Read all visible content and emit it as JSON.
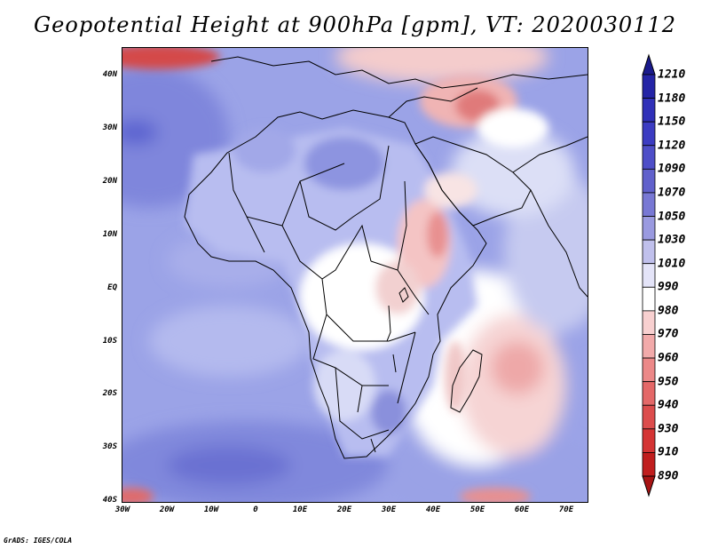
{
  "title": "Geopotential Height at 900hPa [gpm], VT: 2020030112",
  "footer": "GrADS: IGES/COLA",
  "lat_labels": [
    "40N",
    "30N",
    "20N",
    "10N",
    "EQ",
    "10S",
    "20S",
    "30S",
    "40S"
  ],
  "lon_labels": [
    "30W",
    "20W",
    "10W",
    "0",
    "10E",
    "20E",
    "30E",
    "40E",
    "50E",
    "60E",
    "70E"
  ],
  "colorbar": {
    "labels": [
      "1210",
      "1180",
      "1150",
      "1120",
      "1090",
      "1070",
      "1050",
      "1030",
      "1010",
      "990",
      "980",
      "970",
      "960",
      "950",
      "940",
      "930",
      "910",
      "890"
    ],
    "colors": [
      "#1a1a8c",
      "#2424a6",
      "#3030b8",
      "#3c3cc2",
      "#4e4ec8",
      "#6161cc",
      "#7878d4",
      "#9a9ae0",
      "#c0c0ec",
      "#e4e4f8",
      "#ffffff",
      "#f8d0d0",
      "#f2aaaa",
      "#ec8888",
      "#e46868",
      "#dc4c4c",
      "#d43434",
      "#c01e1e",
      "#a81414"
    ]
  }
}
